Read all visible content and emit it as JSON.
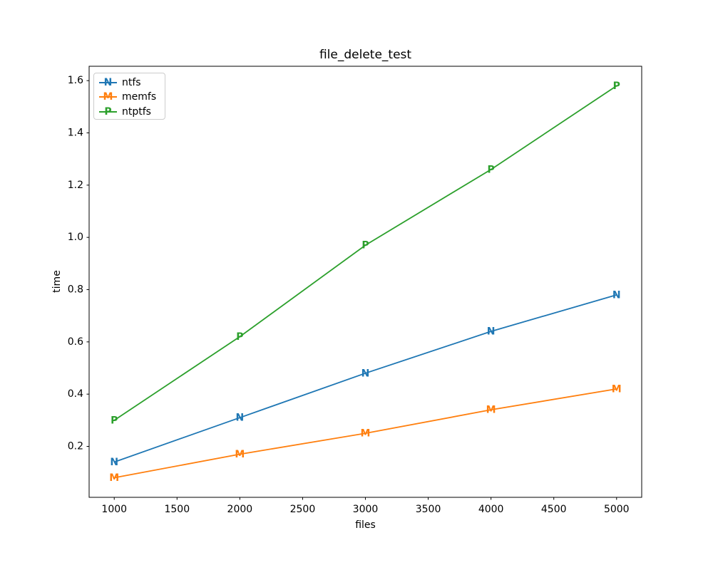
{
  "figure": {
    "background": "#ffffff",
    "text_color": "#000000",
    "spine_color": "#000000",
    "legend_border_color": "#cccccc"
  },
  "chart_data": {
    "type": "line",
    "title": "file_delete_test",
    "xlabel": "files",
    "ylabel": "time",
    "x": [
      1000,
      2000,
      3000,
      4000,
      5000
    ],
    "series": [
      {
        "name": "ntfs",
        "marker": "N",
        "color": "#1f77b4",
        "values": [
          0.14,
          0.31,
          0.48,
          0.64,
          0.78
        ]
      },
      {
        "name": "memfs",
        "marker": "M",
        "color": "#ff7f0e",
        "values": [
          0.08,
          0.17,
          0.25,
          0.34,
          0.42
        ]
      },
      {
        "name": "ntptfs",
        "marker": "P",
        "color": "#2ca02c",
        "values": [
          0.3,
          0.62,
          0.97,
          1.26,
          1.58
        ]
      }
    ],
    "xticks": [
      1000,
      1500,
      2000,
      2500,
      3000,
      3500,
      4000,
      4500,
      5000
    ],
    "yticks": [
      0.2,
      0.4,
      0.6,
      0.8,
      1.0,
      1.2,
      1.4,
      1.6
    ],
    "xlim": [
      800,
      5200
    ],
    "ylim": [
      0.005,
      1.655
    ],
    "grid": false,
    "legend_position": "upper left"
  }
}
